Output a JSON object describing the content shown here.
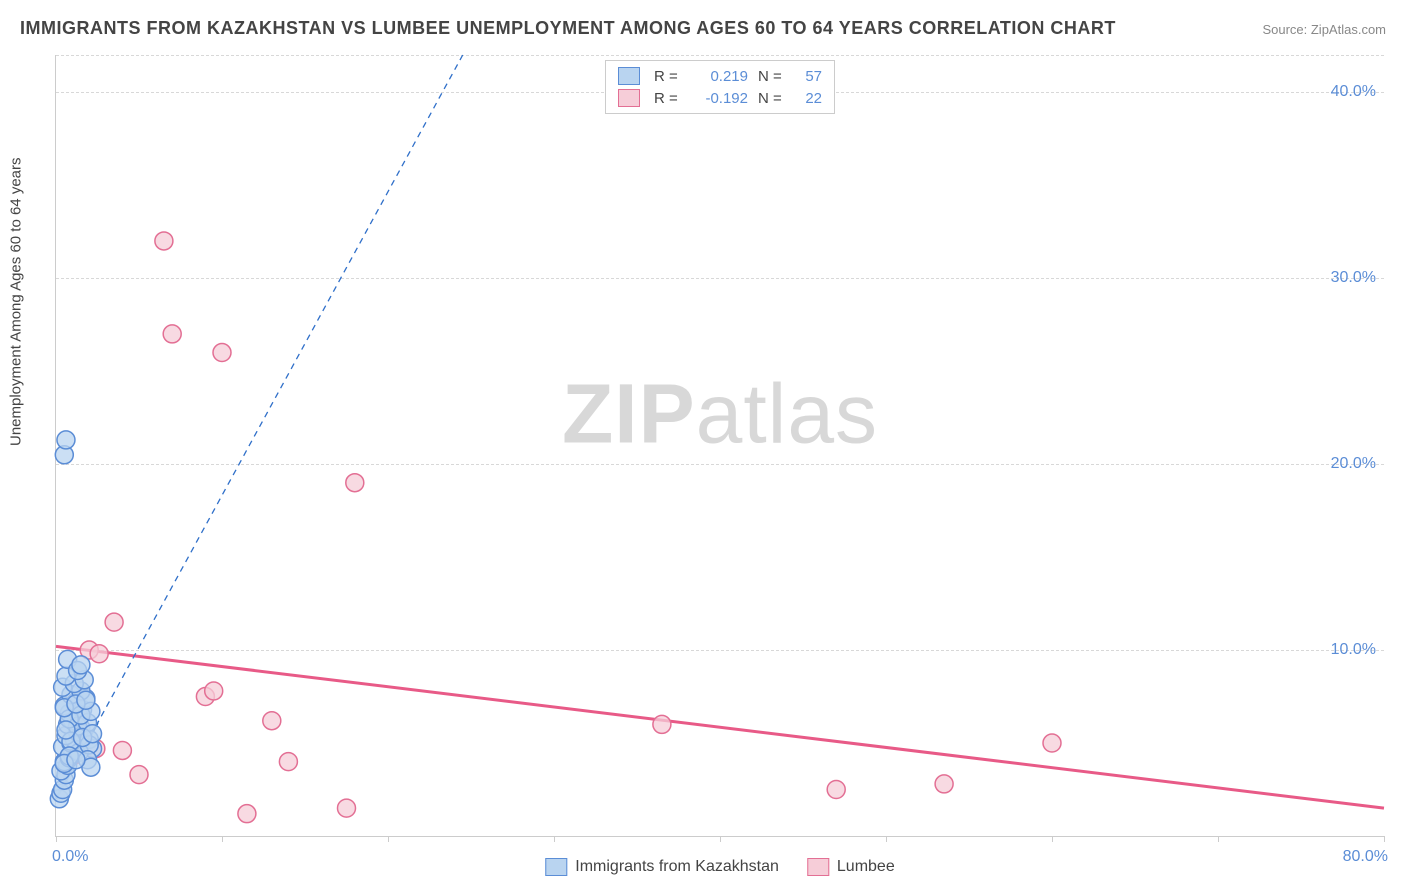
{
  "title": "IMMIGRANTS FROM KAZAKHSTAN VS LUMBEE UNEMPLOYMENT AMONG AGES 60 TO 64 YEARS CORRELATION CHART",
  "source": "Source: ZipAtlas.com",
  "y_axis_label": "Unemployment Among Ages 60 to 64 years",
  "watermark_a": "ZIP",
  "watermark_b": "atlas",
  "chart": {
    "type": "scatter",
    "xlim": [
      0,
      80
    ],
    "ylim": [
      0,
      42
    ],
    "x_ticks": [
      0,
      10,
      20,
      30,
      40,
      50,
      60,
      70,
      80
    ],
    "x_tick_labels": {
      "0": "0.0%",
      "80": "80.0%"
    },
    "y_gridlines": [
      10,
      20,
      30,
      40,
      42
    ],
    "y_tick_labels": {
      "10": "10.0%",
      "20": "20.0%",
      "30": "30.0%",
      "40": "40.0%"
    },
    "background_color": "#ffffff",
    "grid_color": "#d8d8d8",
    "marker_radius": 9,
    "marker_stroke_width": 1.5,
    "series_a": {
      "label": "Immigrants from Kazakhstan",
      "fill": "#b9d4f0",
      "stroke": "#5b8dd6",
      "r_value": "0.219",
      "n_value": "57",
      "trend": {
        "x1": 0,
        "y1": 2.0,
        "x2": 24.5,
        "y2": 42.0,
        "stroke": "#2f6fc9",
        "width": 2.5,
        "dash": "none",
        "ext_x2": 25.5,
        "ext_dash": "6,5"
      },
      "points": [
        [
          0.2,
          2.0
        ],
        [
          0.3,
          2.3
        ],
        [
          0.4,
          2.5
        ],
        [
          0.5,
          3.0
        ],
        [
          0.6,
          3.3
        ],
        [
          0.3,
          3.5
        ],
        [
          0.7,
          3.8
        ],
        [
          0.5,
          4.0
        ],
        [
          0.8,
          4.2
        ],
        [
          1.0,
          4.4
        ],
        [
          1.2,
          4.6
        ],
        [
          0.4,
          4.8
        ],
        [
          0.9,
          5.0
        ],
        [
          1.1,
          5.2
        ],
        [
          0.6,
          5.4
        ],
        [
          1.3,
          5.6
        ],
        [
          1.5,
          5.8
        ],
        [
          0.7,
          6.0
        ],
        [
          1.0,
          6.2
        ],
        [
          1.4,
          6.4
        ],
        [
          0.8,
          6.6
        ],
        [
          1.6,
          6.8
        ],
        [
          0.5,
          7.0
        ],
        [
          1.2,
          7.2
        ],
        [
          1.8,
          7.4
        ],
        [
          0.9,
          7.6
        ],
        [
          1.5,
          7.8
        ],
        [
          2.0,
          5.2
        ],
        [
          2.2,
          4.7
        ],
        [
          0.4,
          8.0
        ],
        [
          1.1,
          8.2
        ],
        [
          1.7,
          8.4
        ],
        [
          0.6,
          8.6
        ],
        [
          1.3,
          5.9
        ],
        [
          1.9,
          6.1
        ],
        [
          0.8,
          6.3
        ],
        [
          1.5,
          6.5
        ],
        [
          2.1,
          6.7
        ],
        [
          0.5,
          6.9
        ],
        [
          1.2,
          7.1
        ],
        [
          1.8,
          7.3
        ],
        [
          0.7,
          9.5
        ],
        [
          1.4,
          4.5
        ],
        [
          2.0,
          4.9
        ],
        [
          0.9,
          5.1
        ],
        [
          1.6,
          5.3
        ],
        [
          2.2,
          5.5
        ],
        [
          0.6,
          5.7
        ],
        [
          1.3,
          8.9
        ],
        [
          1.9,
          4.1
        ],
        [
          0.8,
          4.3
        ],
        [
          1.5,
          9.2
        ],
        [
          2.1,
          3.7
        ],
        [
          0.5,
          3.9
        ],
        [
          1.2,
          4.1
        ],
        [
          0.5,
          20.5
        ],
        [
          0.6,
          21.3
        ]
      ]
    },
    "series_b": {
      "label": "Lumbee",
      "fill": "#f6cdd8",
      "stroke": "#e36f94",
      "r_value": "-0.192",
      "n_value": "22",
      "trend": {
        "x1": 0,
        "y1": 10.2,
        "x2": 80,
        "y2": 1.5,
        "stroke": "#e85a87",
        "width": 3,
        "dash": "none"
      },
      "points": [
        [
          1.0,
          4.3
        ],
        [
          2.0,
          10.0
        ],
        [
          4.0,
          4.6
        ],
        [
          5.0,
          3.3
        ],
        [
          6.5,
          32.0
        ],
        [
          7.0,
          27.0
        ],
        [
          9.0,
          7.5
        ],
        [
          9.5,
          7.8
        ],
        [
          10.0,
          26.0
        ],
        [
          11.5,
          1.2
        ],
        [
          13.0,
          6.2
        ],
        [
          14.0,
          4.0
        ],
        [
          17.5,
          1.5
        ],
        [
          18.0,
          19.0
        ],
        [
          3.5,
          11.5
        ],
        [
          36.5,
          6.0
        ],
        [
          47.0,
          2.5
        ],
        [
          60.0,
          5.0
        ],
        [
          53.5,
          2.8
        ],
        [
          2.4,
          4.7
        ],
        [
          2.6,
          9.8
        ],
        [
          1.5,
          5.1
        ]
      ]
    }
  },
  "legend_top": {
    "r_label": "R  =",
    "n_label": "N  ="
  }
}
